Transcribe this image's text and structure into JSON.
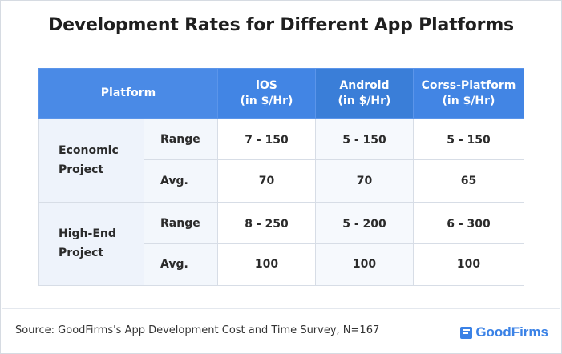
{
  "chart_data": {
    "type": "table",
    "title": "Development Rates for Different App Platforms",
    "header": {
      "platform": "Platform",
      "columns": [
        {
          "name": "iOS",
          "unit": "(in $/Hr)"
        },
        {
          "name": "Android",
          "unit": "(in $/Hr)"
        },
        {
          "name": "Corss-Platform",
          "unit": "(in $/Hr)"
        }
      ]
    },
    "groups": [
      {
        "name_line1": "Economic",
        "name_line2": "Project",
        "rows": [
          {
            "metric": "Range",
            "values": [
              "7 - 150",
              "5 - 150",
              "5 - 150"
            ]
          },
          {
            "metric": "Avg.",
            "values": [
              "70",
              "70",
              "65"
            ]
          }
        ]
      },
      {
        "name_line1": "High-End",
        "name_line2": "Project",
        "rows": [
          {
            "metric": "Range",
            "values": [
              "8 - 250",
              "5 - 200",
              "6 - 300"
            ]
          },
          {
            "metric": "Avg.",
            "values": [
              "100",
              "100",
              "100"
            ]
          }
        ]
      }
    ]
  },
  "footer": {
    "source": "Source: GoodFirms's App Development Cost and Time Survey, N=167",
    "brand": "GoodFirms",
    "brand_icon": "goodfirms-logo-icon",
    "brand_color": "#3b82e6"
  },
  "colors": {
    "header_blue": "#4285e4",
    "row_label_bg": "#eef3fb"
  }
}
